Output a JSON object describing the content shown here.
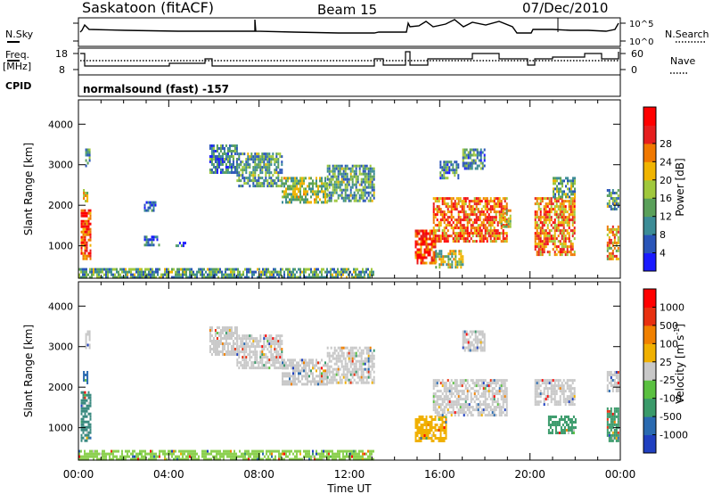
{
  "header": {
    "station": "Saskatoon (fitACF)",
    "beam": "Beam 15",
    "date": "07/Dec/2010"
  },
  "summary_panels": {
    "nsky_label": "N.Sky",
    "nsky_ticks": [
      "10^5",
      "10^0"
    ],
    "nsearch_label": "N.Search",
    "freq_label_1": "Freq.",
    "freq_label_2": "[MHz]",
    "freq_ticks": [
      "18",
      "8"
    ],
    "nave_label": "Nave",
    "nave_ticks": [
      "60",
      "0"
    ],
    "cpid_label": "CPID",
    "cpid_text": "normalsound (fast) -157"
  },
  "chart_data": [
    {
      "type": "heatmap",
      "name": "power",
      "ylabel": "Slant Range [km]",
      "xlabel": "Time UT",
      "ylim": [
        200,
        4600
      ],
      "y_ticks": [
        1000,
        2000,
        3000,
        4000
      ],
      "y_tick_labels": [
        "1000",
        "2000",
        "3000",
        "4000"
      ],
      "x_range_hours": [
        0,
        24
      ],
      "x_ticks": [
        "00:00",
        "04:00",
        "08:00",
        "12:00",
        "16:00",
        "20:00",
        "00:00"
      ],
      "colorbar_label": "Power [dB]",
      "colorbar_ticks": [
        "4",
        "8",
        "12",
        "16",
        "20",
        "24",
        "28"
      ],
      "colorbar_colors": [
        "#1a1aff",
        "#2a55b8",
        "#3c8c96",
        "#5aa05a",
        "#a0c83c",
        "#f0b400",
        "#f07800",
        "#e61e1e",
        "#ff0000"
      ],
      "regions": [
        {
          "t0": 0.1,
          "t1": 0.5,
          "r0": 700,
          "r1": 1900,
          "level": 0.8
        },
        {
          "t0": 0.2,
          "t1": 0.4,
          "r0": 2100,
          "r1": 2400,
          "level": 0.5
        },
        {
          "t0": 0.3,
          "t1": 0.5,
          "r0": 3000,
          "r1": 3400,
          "level": 0.3
        },
        {
          "t0": 2.9,
          "t1": 3.4,
          "r0": 1850,
          "r1": 2100,
          "level": 0.2
        },
        {
          "t0": 2.9,
          "t1": 3.6,
          "r0": 1050,
          "r1": 1250,
          "level": 0.2
        },
        {
          "t0": 4.3,
          "t1": 4.7,
          "r0": 1000,
          "r1": 1100,
          "level": 0.2
        },
        {
          "t0": 5.8,
          "t1": 7.0,
          "r0": 2800,
          "r1": 3500,
          "level": 0.25
        },
        {
          "t0": 7.0,
          "t1": 9.0,
          "r0": 2500,
          "r1": 3300,
          "level": 0.35
        },
        {
          "t0": 9.0,
          "t1": 11.0,
          "r0": 2050,
          "r1": 2700,
          "level": 0.45
        },
        {
          "t0": 11.0,
          "t1": 13.1,
          "r0": 2100,
          "r1": 3000,
          "level": 0.35
        },
        {
          "t0": 0.0,
          "t1": 13.1,
          "r0": 250,
          "r1": 450,
          "level": 0.35
        },
        {
          "t0": 14.9,
          "t1": 15.8,
          "r0": 600,
          "r1": 1400,
          "level": 0.85
        },
        {
          "t0": 15.8,
          "t1": 17.0,
          "r0": 500,
          "r1": 900,
          "level": 0.5
        },
        {
          "t0": 15.7,
          "t1": 19.0,
          "r0": 1100,
          "r1": 2200,
          "level": 0.75
        },
        {
          "t0": 16.0,
          "t1": 16.8,
          "r0": 2700,
          "r1": 3100,
          "level": 0.3
        },
        {
          "t0": 17.0,
          "t1": 18.0,
          "r0": 2900,
          "r1": 3400,
          "level": 0.3
        },
        {
          "t0": 18.7,
          "t1": 19.1,
          "r0": 1500,
          "r1": 1900,
          "level": 0.55
        },
        {
          "t0": 20.2,
          "t1": 22.0,
          "r0": 800,
          "r1": 2200,
          "level": 0.7
        },
        {
          "t0": 21.0,
          "t1": 22.0,
          "r0": 2200,
          "r1": 2700,
          "level": 0.4
        },
        {
          "t0": 23.4,
          "t1": 23.9,
          "r0": 700,
          "r1": 1500,
          "level": 0.65
        },
        {
          "t0": 23.4,
          "t1": 23.9,
          "r0": 1900,
          "r1": 2400,
          "level": 0.35
        }
      ]
    },
    {
      "type": "heatmap",
      "name": "velocity",
      "ylabel": "Slant Range [km]",
      "xlabel": "Time UT",
      "ylim": [
        200,
        4600
      ],
      "y_ticks": [
        1000,
        2000,
        3000,
        4000
      ],
      "y_tick_labels": [
        "1000",
        "2000",
        "3000",
        "4000"
      ],
      "x_range_hours": [
        0,
        24
      ],
      "x_ticks": [
        "00:00",
        "04:00",
        "08:00",
        "12:00",
        "16:00",
        "20:00",
        "00:00"
      ],
      "colorbar_label": "Velocity [m s",
      "colorbar_superscript": "-1",
      "colorbar_label_end": "]",
      "colorbar_ticks": [
        "1000",
        "500",
        "100",
        "25",
        "-25",
        "-100",
        "-500",
        "-1000"
      ],
      "colorbar_colors": [
        "#2040c0",
        "#2a6ab0",
        "#3a9a6a",
        "#5ac040",
        "#c8c8c8",
        "#f0b000",
        "#f08000",
        "#e83010",
        "#ff0000"
      ],
      "regions": [
        {
          "t0": 0.1,
          "t1": 0.5,
          "r0": 700,
          "r1": 1900,
          "color": "#3a8a80"
        },
        {
          "t0": 0.2,
          "t1": 0.4,
          "r0": 2100,
          "r1": 2400,
          "color": "#2a6ab0"
        },
        {
          "t0": 0.3,
          "t1": 0.5,
          "r0": 3000,
          "r1": 3400,
          "color": "#c8c8c8"
        },
        {
          "t0": 5.8,
          "t1": 7.0,
          "r0": 2800,
          "r1": 3500,
          "color": "#c8c8c8"
        },
        {
          "t0": 7.0,
          "t1": 9.0,
          "r0": 2500,
          "r1": 3300,
          "color": "#c8c8c8"
        },
        {
          "t0": 9.0,
          "t1": 11.0,
          "r0": 2050,
          "r1": 2700,
          "color": "#c8c8c8"
        },
        {
          "t0": 11.0,
          "t1": 13.1,
          "r0": 2100,
          "r1": 3000,
          "color": "#c8c8c8"
        },
        {
          "t0": 0.0,
          "t1": 13.1,
          "r0": 250,
          "r1": 450,
          "color": "#8cd050"
        },
        {
          "t0": 14.9,
          "t1": 16.3,
          "r0": 650,
          "r1": 1300,
          "color": "#f0b000"
        },
        {
          "t0": 15.7,
          "t1": 19.0,
          "r0": 1300,
          "r1": 2200,
          "color": "#c8c8c8"
        },
        {
          "t0": 17.0,
          "t1": 18.0,
          "r0": 2900,
          "r1": 3400,
          "color": "#c8c8c8"
        },
        {
          "t0": 20.2,
          "t1": 22.0,
          "r0": 1600,
          "r1": 2200,
          "color": "#c8c8c8"
        },
        {
          "t0": 20.8,
          "t1": 22.0,
          "r0": 900,
          "r1": 1300,
          "color": "#3a9a6a"
        },
        {
          "t0": 23.4,
          "t1": 23.9,
          "r0": 700,
          "r1": 1500,
          "color": "#3a9a6a"
        },
        {
          "t0": 23.4,
          "t1": 23.9,
          "r0": 1900,
          "r1": 2400,
          "color": "#c8c8c8"
        }
      ]
    }
  ]
}
